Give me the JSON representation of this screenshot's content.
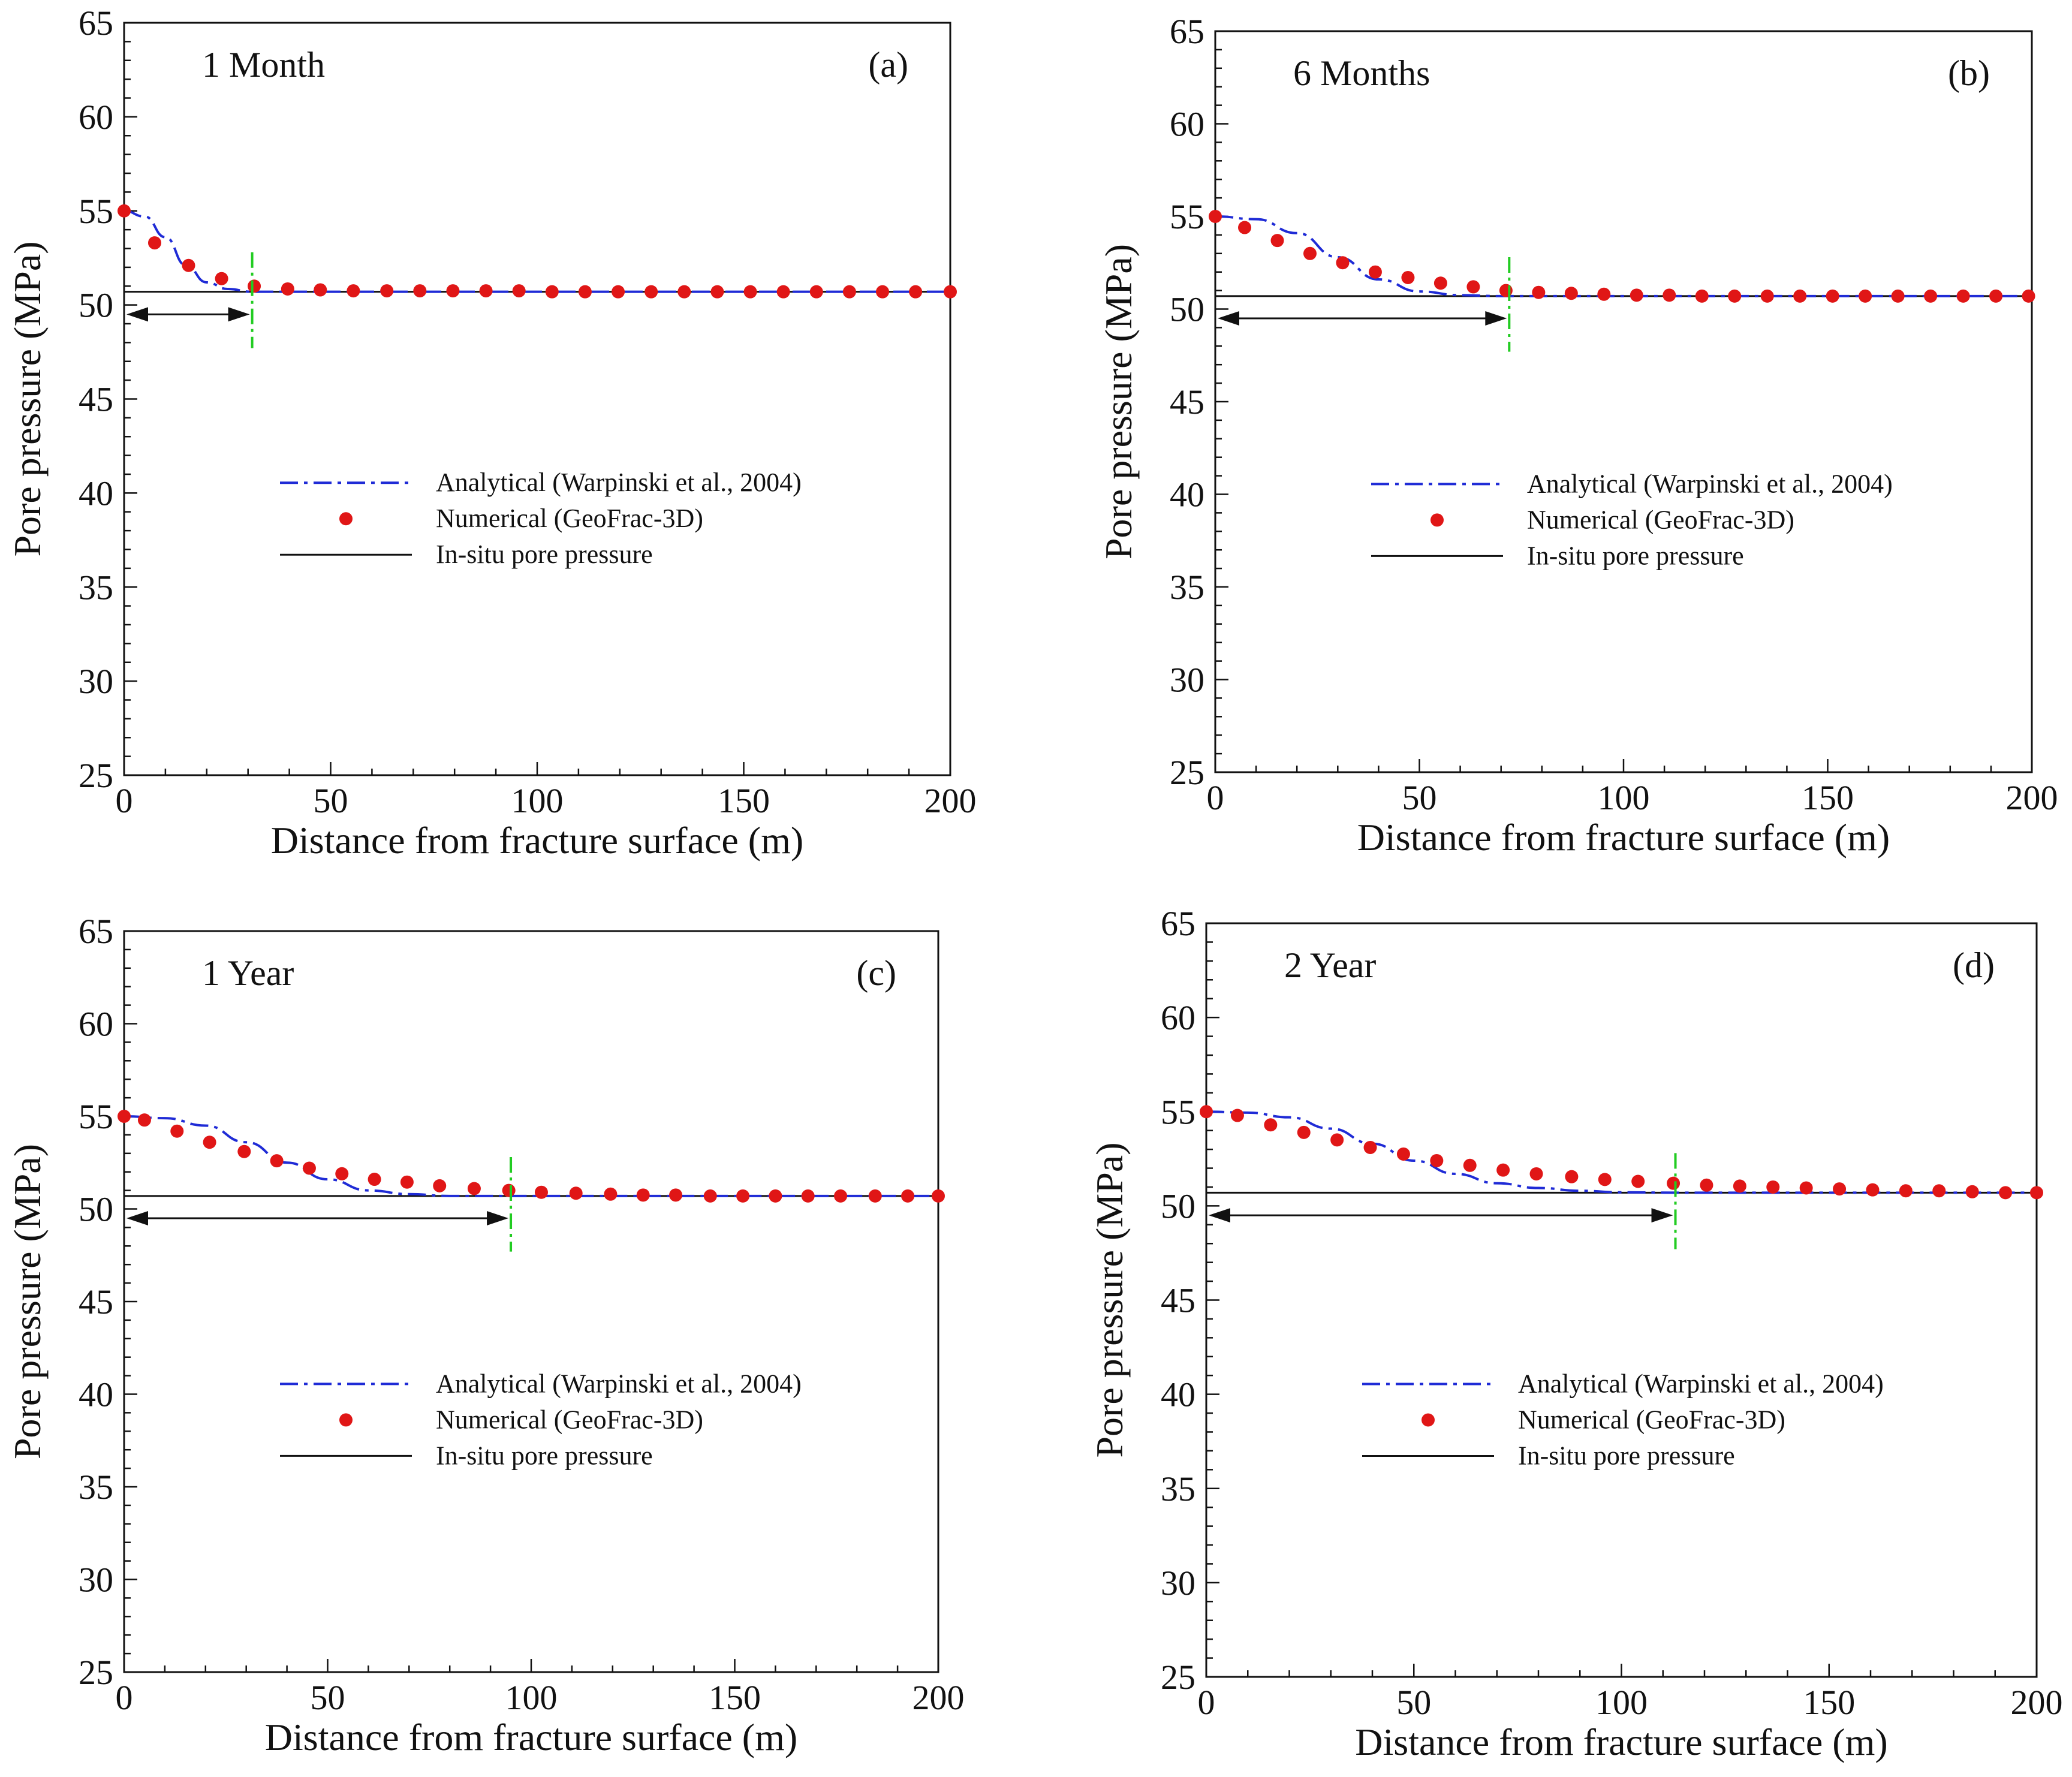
{
  "figure": {
    "colors": {
      "analytical": "#1f2bd6",
      "numerical": "#e01616",
      "insitu": "#111111",
      "marker_line": "#22cc22",
      "arrow": "#111111",
      "axis": "#111111"
    }
  },
  "chart_data": [
    {
      "type": "line",
      "panel_label": "(a)",
      "title": "1 Month",
      "xlabel": "Distance from fracture surface (m)",
      "ylabel": "Pore pressure (MPa)",
      "xlim": [
        0,
        200
      ],
      "ylim": [
        25,
        65
      ],
      "xticks": [
        0,
        50,
        100,
        150,
        200
      ],
      "yticks": [
        25,
        30,
        35,
        40,
        45,
        50,
        55,
        60,
        65
      ],
      "legend": [
        "Analytical (Warpinski et al., 2004)",
        "Numerical (GeoFrac-3D)",
        "In-situ pore pressure"
      ],
      "legend_position": "center",
      "in_situ_pressure": 50.7,
      "front_distance": 31,
      "analytical": {
        "x": [
          0,
          5,
          10,
          15,
          20,
          25,
          31,
          40,
          200
        ],
        "y": [
          55.0,
          54.7,
          53.6,
          52.1,
          51.2,
          50.85,
          50.7,
          50.7,
          50.7
        ]
      },
      "numerical": {
        "x": [
          0,
          7.4,
          15.6,
          23.6,
          31.5,
          39.6,
          47.5,
          55.5,
          63.6,
          71.6,
          79.6,
          87.6,
          95.6,
          103.6,
          111.6,
          119.6,
          127.6,
          135.6,
          143.6,
          151.6,
          159.6,
          167.6,
          175.6,
          183.6,
          191.6,
          200
        ],
        "y": [
          55.0,
          53.3,
          52.1,
          51.4,
          51.0,
          50.85,
          50.8,
          50.75,
          50.75,
          50.75,
          50.75,
          50.75,
          50.75,
          50.7,
          50.7,
          50.7,
          50.7,
          50.7,
          50.7,
          50.7,
          50.7,
          50.7,
          50.7,
          50.7,
          50.7,
          50.7
        ]
      }
    },
    {
      "type": "line",
      "panel_label": "(b)",
      "title": "6 Months",
      "xlabel": "Distance from fracture surface (m)",
      "ylabel": "Pore pressure (MPa)",
      "xlim": [
        0,
        200
      ],
      "ylim": [
        25,
        65
      ],
      "xticks": [
        0,
        50,
        100,
        150,
        200
      ],
      "yticks": [
        25,
        30,
        35,
        40,
        45,
        50,
        55,
        60,
        65
      ],
      "legend": [
        "Analytical (Warpinski et al., 2004)",
        "Numerical (GeoFrac-3D)",
        "In-situ pore pressure"
      ],
      "legend_position": "center",
      "in_situ_pressure": 50.7,
      "front_distance": 72,
      "analytical": {
        "x": [
          0,
          10,
          20,
          30,
          40,
          50,
          60,
          70,
          200
        ],
        "y": [
          55.0,
          54.85,
          54.1,
          52.8,
          51.6,
          50.95,
          50.75,
          50.7,
          50.7
        ]
      },
      "numerical": {
        "x": [
          0,
          7.2,
          15.2,
          23.2,
          31.2,
          39.2,
          47.2,
          55.2,
          63.2,
          71.2,
          79.2,
          87.2,
          95.2,
          103.2,
          111.2,
          119.2,
          127.2,
          135.2,
          143.2,
          151.2,
          159.2,
          167.2,
          175.2,
          183.2,
          191.2,
          199.2
        ],
        "y": [
          55.0,
          54.4,
          53.7,
          53.0,
          52.5,
          52.0,
          51.7,
          51.4,
          51.2,
          51.0,
          50.9,
          50.85,
          50.8,
          50.75,
          50.75,
          50.7,
          50.7,
          50.7,
          50.7,
          50.7,
          50.7,
          50.7,
          50.7,
          50.7,
          50.7,
          50.7
        ]
      }
    },
    {
      "type": "line",
      "panel_label": "(c)",
      "title": "1 Year",
      "xlabel": "Distance from fracture surface (m)",
      "ylabel": "Pore pressure (MPa)",
      "xlim": [
        0,
        200
      ],
      "ylim": [
        25,
        65
      ],
      "xticks": [
        0,
        50,
        100,
        150,
        200
      ],
      "yticks": [
        25,
        30,
        35,
        40,
        45,
        50,
        55,
        60,
        65
      ],
      "legend": [
        "Analytical (Warpinski et al., 2004)",
        "Numerical (GeoFrac-3D)",
        "In-situ pore pressure"
      ],
      "legend_position": "center",
      "in_situ_pressure": 50.7,
      "front_distance": 95,
      "analytical": {
        "x": [
          0,
          10,
          20,
          30,
          40,
          50,
          60,
          70,
          80,
          95,
          200
        ],
        "y": [
          55.0,
          54.9,
          54.5,
          53.6,
          52.5,
          51.6,
          51.0,
          50.8,
          50.7,
          50.7,
          50.7
        ]
      },
      "numerical": {
        "x": [
          0,
          5,
          13,
          21,
          29.5,
          37.5,
          45.5,
          53.5,
          61.5,
          69.5,
          77.5,
          86,
          94.5,
          102.5,
          111,
          119.5,
          127.5,
          135.5,
          144,
          152,
          160,
          168,
          176,
          184.5,
          192.5,
          200
        ],
        "y": [
          55.0,
          54.8,
          54.2,
          53.6,
          53.1,
          52.6,
          52.2,
          51.9,
          51.6,
          51.45,
          51.25,
          51.1,
          51.0,
          50.9,
          50.85,
          50.8,
          50.75,
          50.75,
          50.7,
          50.7,
          50.7,
          50.7,
          50.7,
          50.7,
          50.7,
          50.7
        ]
      }
    },
    {
      "type": "line",
      "panel_label": "(d)",
      "title": "2 Year",
      "xlabel": "Distance from fracture surface (m)",
      "ylabel": "Pore pressure (MPa)",
      "xlim": [
        0,
        200
      ],
      "ylim": [
        25,
        65
      ],
      "xticks": [
        0,
        50,
        100,
        150,
        200
      ],
      "yticks": [
        25,
        30,
        35,
        40,
        45,
        50,
        55,
        60,
        65
      ],
      "legend": [
        "Analytical (Warpinski et al., 2004)",
        "Numerical (GeoFrac-3D)",
        "In-situ pore pressure"
      ],
      "legend_position": "center",
      "in_situ_pressure": 50.7,
      "front_distance": 113,
      "analytical": {
        "x": [
          0,
          10,
          20,
          30,
          40,
          50,
          60,
          70,
          80,
          90,
          100,
          113,
          200
        ],
        "y": [
          55.0,
          54.95,
          54.7,
          54.1,
          53.3,
          52.4,
          51.7,
          51.2,
          50.95,
          50.8,
          50.72,
          50.7,
          50.7
        ]
      },
      "numerical": {
        "x": [
          0,
          7.5,
          15.5,
          23.5,
          31.5,
          39.5,
          47.5,
          55.5,
          63.5,
          71.5,
          79.5,
          88,
          96,
          104,
          112.5,
          120.5,
          128.5,
          136.5,
          144.5,
          152.5,
          160.5,
          168.5,
          176.5,
          184.5,
          192.5,
          200
        ],
        "y": [
          55.0,
          54.8,
          54.3,
          53.9,
          53.5,
          53.1,
          52.75,
          52.4,
          52.15,
          51.9,
          51.7,
          51.55,
          51.4,
          51.3,
          51.2,
          51.1,
          51.05,
          51.0,
          50.95,
          50.9,
          50.85,
          50.8,
          50.8,
          50.75,
          50.7,
          50.7
        ]
      }
    }
  ]
}
